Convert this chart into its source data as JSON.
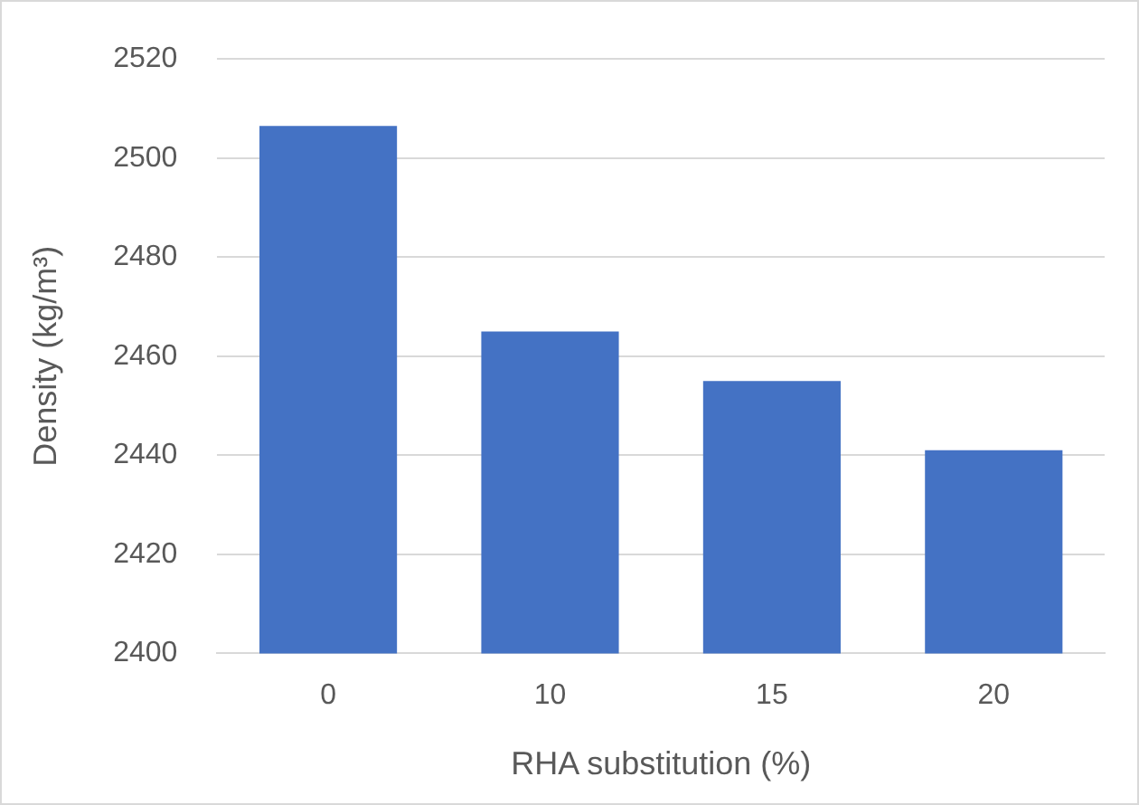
{
  "chart_data": {
    "type": "bar",
    "xlabel": "RHA substitution (%)",
    "ylabel": "Density (kg/m³)",
    "categories": [
      "0",
      "10",
      "15",
      "20"
    ],
    "values": [
      2506.5,
      2465,
      2455,
      2441
    ],
    "color": "#4472c4",
    "ylim": [
      2400,
      2520
    ],
    "yticks": [
      2400,
      2420,
      2440,
      2460,
      2480,
      2500,
      2520
    ],
    "grid": "y"
  }
}
